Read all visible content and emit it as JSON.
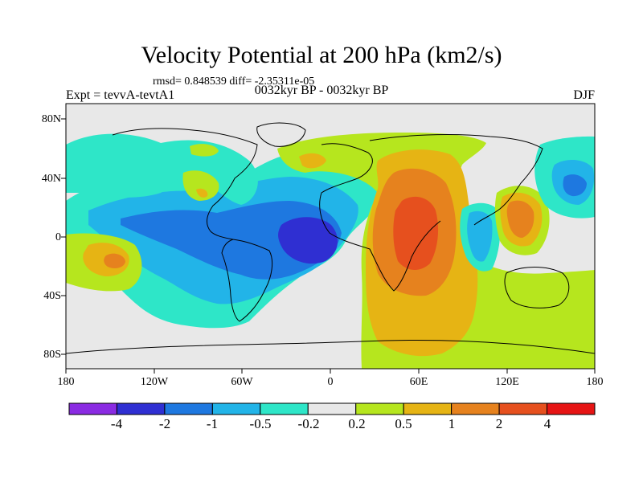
{
  "figure": {
    "title": "Velocity Potential at 200 hPa (km2/s)",
    "stats": "rmsd= 0.848539 diff= -2.35311e-05",
    "experiment": "Expt = tevvA-tevtA1",
    "period": "0032kyr BP - 0032kyr BP",
    "season": "DJF"
  },
  "axes": {
    "lat_labels": [
      "80N",
      "40N",
      "0",
      "40S",
      "80S"
    ],
    "lon_labels": [
      "180",
      "120W",
      "60W",
      "0",
      "60E",
      "120E",
      "180"
    ]
  },
  "colorbar": {
    "colors": [
      "#8a2be2",
      "#2f2fd2",
      "#1e78e0",
      "#22b4e8",
      "#2ee6c8",
      "#e8e8e8",
      "#b6e61e",
      "#e6b414",
      "#e6821e",
      "#e6501e",
      "#e61414"
    ],
    "labels": [
      "-4",
      "-2",
      "-1",
      "-0.5",
      "-0.2",
      "0.2",
      "0.5",
      "1",
      "2",
      "4"
    ]
  }
}
